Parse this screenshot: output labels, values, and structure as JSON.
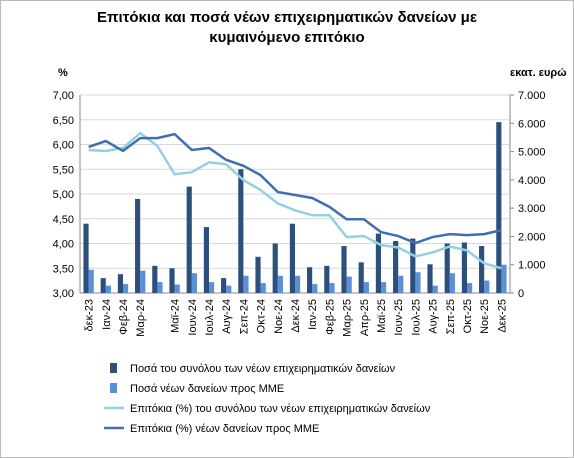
{
  "chart_data": {
    "type": "bar_line",
    "title": [
      "Επιτόκια και ποσά νέων επιχειρηματικών δανείων με",
      "κυμαινόμενο επιτόκιο"
    ],
    "y_label": "%",
    "y2_label": "εκατ. ευρώ",
    "categories": [
      "δεκ-23",
      "Ιαν-24",
      "Φεβ-24",
      "Μαρ-24",
      null,
      "Μαϊ-24",
      "Ιουν-24",
      "Ιουλ-24",
      "Αυγ-24",
      "Σεπ-24",
      "Οκτ-24",
      "Νοε-24",
      "Δεκ-24",
      "Ιαν-25",
      "Φεβ-25",
      "Μαρ-25",
      "Απρ-25",
      "Μαϊ-25",
      "Ιουν-25",
      "Ιουλ-25",
      "Αυγ-25",
      "Σεπ-25",
      "Οκτ-25",
      "Νοε-25",
      "Δεκ-25"
    ],
    "ylim": [
      3,
      7
    ],
    "yticks": [
      {
        "value": 3,
        "label": "3,00"
      },
      {
        "value": 3.5,
        "label": "3,50"
      },
      {
        "value": 4,
        "label": "4,00"
      },
      {
        "value": 4.5,
        "label": "4,50"
      },
      {
        "value": 5,
        "label": "5,00"
      },
      {
        "value": 5.5,
        "label": "5,50"
      },
      {
        "value": 6,
        "label": "6,00"
      },
      {
        "value": 6.5,
        "label": "6,50"
      },
      {
        "value": 7,
        "label": "7,00"
      }
    ],
    "y2lim": [
      0,
      7000
    ],
    "y2ticks": [
      0,
      {
        "value": 1000,
        "label": "1.000"
      },
      {
        "value": 2000,
        "label": "2.000"
      },
      {
        "value": 3000,
        "label": "3.000"
      },
      {
        "value": 4000,
        "label": "4.000"
      },
      {
        "value": 5000,
        "label": "5.000"
      },
      {
        "value": 6000,
        "label": "6.000"
      },
      {
        "value": 7000,
        "label": "7.000"
      }
    ],
    "series": [
      {
        "name": "Ποσά του συνόλου των νέων επιχειρηματικών δανείων",
        "type": "bar",
        "axis": "y2",
        "color": "#2c4f7c",
        "values": [
          2450,
          525,
          665,
          3325,
          960,
          875,
          3760,
          2330,
          525,
          4375,
          1280,
          1750,
          2450,
          910,
          960,
          1660,
          1085,
          2100,
          1840,
          1925,
          1015,
          1750,
          1785,
          1660,
          6040
        ]
      },
      {
        "name": "Ποσά νέων δανείων προς ΜΜΕ",
        "type": "bar",
        "axis": "y2",
        "color": "#5b8fd6",
        "values": [
          820,
          260,
          315,
          790,
          385,
          300,
          700,
          385,
          260,
          610,
          350,
          610,
          610,
          315,
          350,
          580,
          385,
          385,
          610,
          735,
          260,
          700,
          350,
          440,
          1000
        ]
      },
      {
        "name": "Επιτόκια (%) του συνόλου των νέων επιχειρηματικών δανείων",
        "type": "line",
        "color": "#93d0e2",
        "values": [
          5.89,
          5.87,
          5.93,
          6.23,
          5.97,
          5.4,
          5.44,
          5.64,
          5.6,
          5.28,
          5.08,
          4.81,
          4.67,
          4.57,
          4.57,
          4.13,
          4.15,
          3.97,
          3.92,
          3.74,
          3.82,
          3.94,
          3.86,
          3.6,
          3.5
        ]
      },
      {
        "name": "Επιτόκια (%) νέων δανείων προς ΜΜΕ",
        "type": "line",
        "color": "#3f6fb0",
        "values": [
          5.95,
          6.07,
          5.87,
          6.13,
          6.13,
          6.21,
          5.89,
          5.93,
          5.69,
          5.57,
          5.38,
          5.04,
          4.98,
          4.92,
          4.74,
          4.49,
          4.49,
          4.23,
          4.15,
          4.01,
          4.13,
          4.19,
          4.17,
          4.19,
          4.27
        ]
      }
    ]
  }
}
